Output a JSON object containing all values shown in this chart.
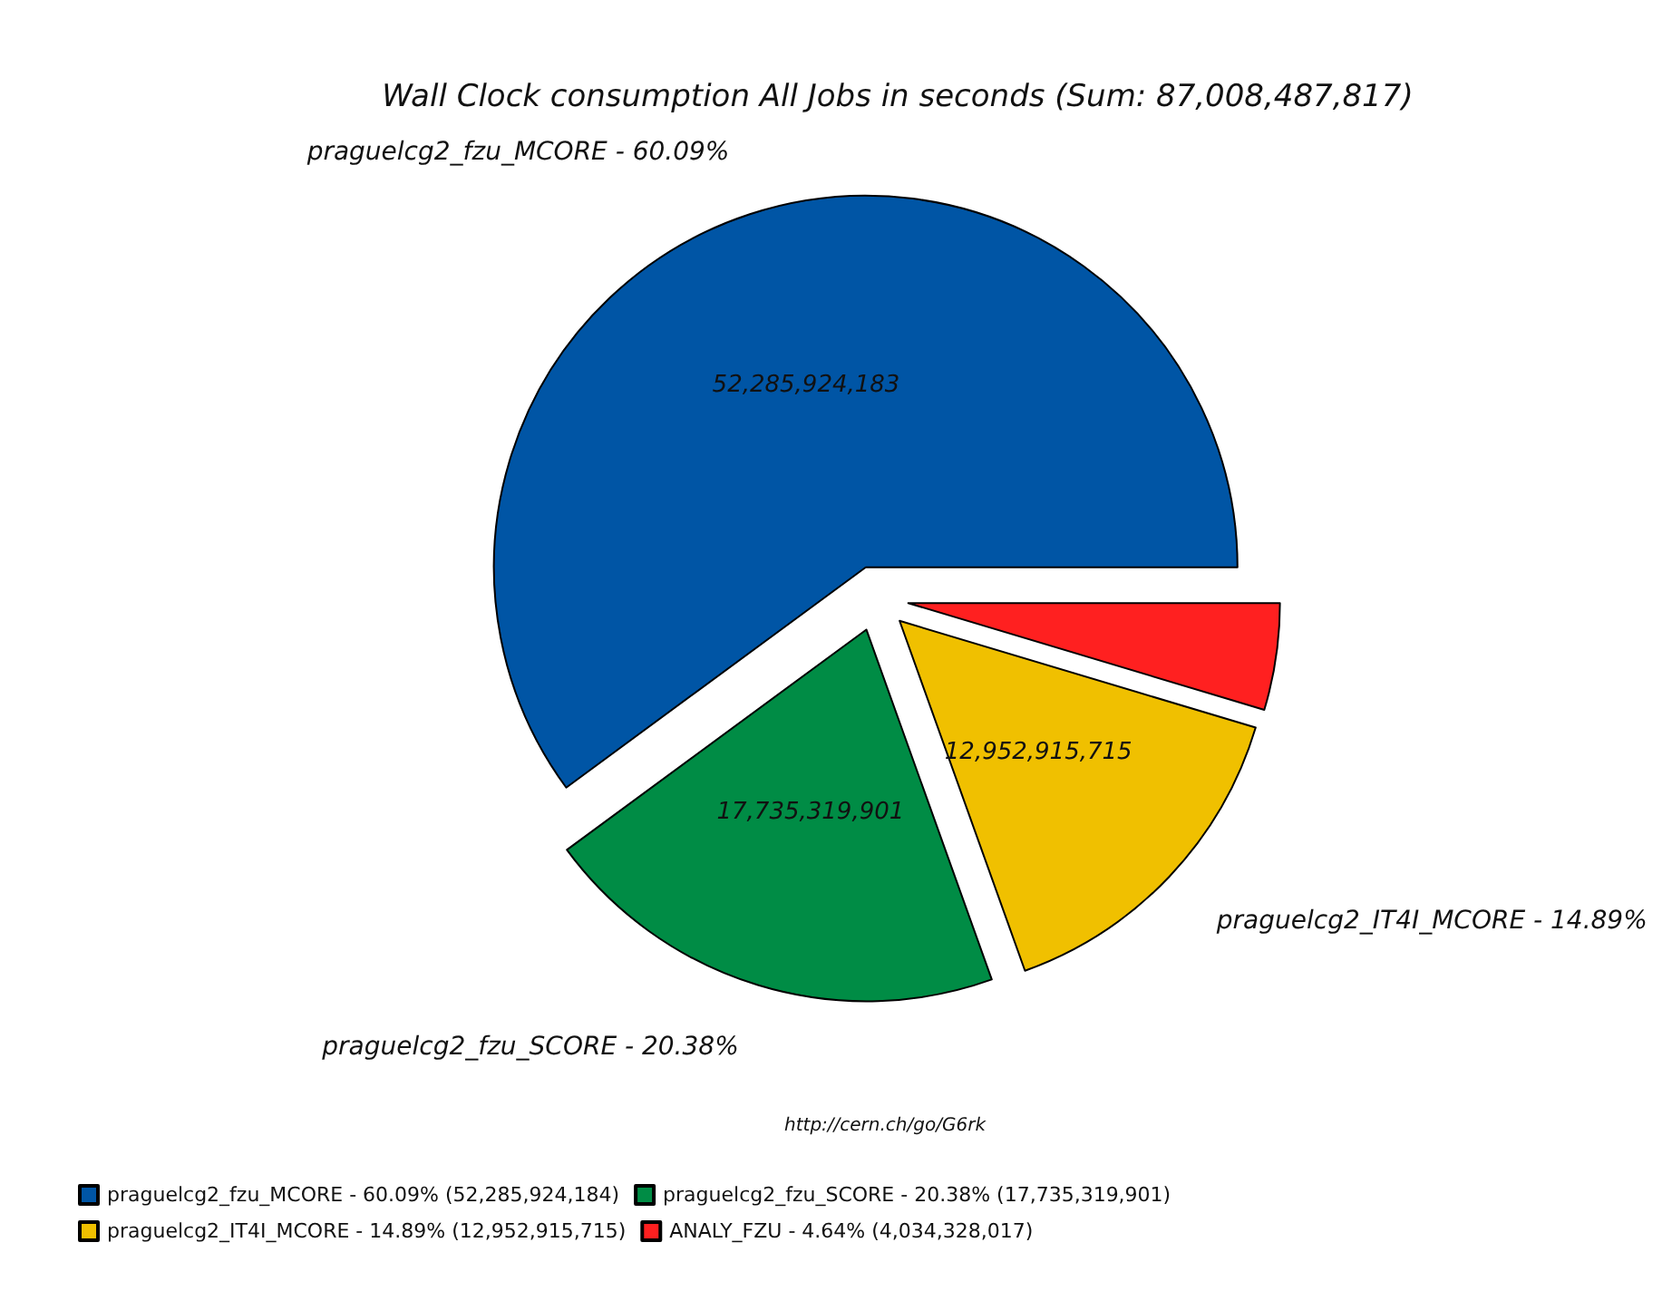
{
  "chart_data": {
    "type": "pie",
    "title": "Wall Clock consumption All Jobs in seconds (Sum: 87,008,487,817)",
    "categories": [
      "praguelcg2_fzu_MCORE - 60.09% (52,285,924,184)",
      "praguelcg2_fzu_SCORE - 20.38% (17,735,319,901)",
      "praguelcg2_IT4I_MCORE - 14.89% (12,952,915,715)",
      "ANALY_FZU - 4.64% (4,034,328,017)"
    ],
    "values": [
      52285924183,
      17735319901,
      12952915715,
      4034328017
    ],
    "colors": [
      "#0055a5",
      "#008c45",
      "#f0c000",
      "#ff2020"
    ],
    "value_labels": [
      "52,285,924,183",
      "17,735,319,901",
      "12,952,915,715",
      null
    ],
    "annotations": [
      "praguelcg2_fzu_MCORE - 60.09%",
      "praguelcg2_fzu_SCORE - 20.38%",
      "praguelcg2_IT4I_MCORE - 14.89%",
      "http://cern.ch/go/G6rk"
    ],
    "legend": "bottom left"
  }
}
